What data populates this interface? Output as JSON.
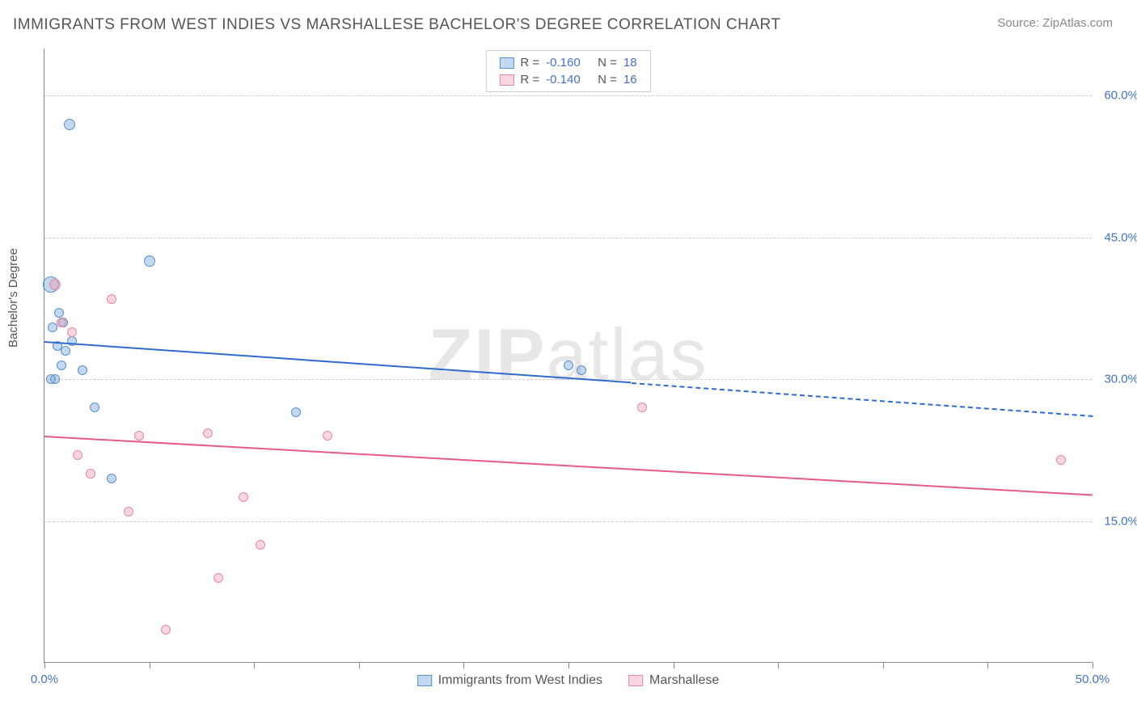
{
  "header": {
    "title": "IMMIGRANTS FROM WEST INDIES VS MARSHALLESE BACHELOR'S DEGREE CORRELATION CHART",
    "source_prefix": "Source: ",
    "source_name": "ZipAtlas.com"
  },
  "ylabel": "Bachelor's Degree",
  "watermark": {
    "part1": "ZIP",
    "part2": "atlas"
  },
  "chart": {
    "type": "scatter-with-trend",
    "x_range": [
      0,
      50
    ],
    "y_range": [
      0,
      65
    ],
    "y_ticks": [
      15.0,
      30.0,
      45.0,
      60.0
    ],
    "y_tick_labels": [
      "15.0%",
      "30.0%",
      "45.0%",
      "60.0%"
    ],
    "x_tick_positions": [
      0,
      5,
      10,
      15,
      20,
      25,
      30,
      35,
      40,
      45,
      50
    ],
    "x_tick_labels": {
      "0": "0.0%",
      "50": "50.0%"
    },
    "grid_color": "#cccccc",
    "axis_color": "#888888",
    "background_color": "#ffffff",
    "label_color": "#4472c4"
  },
  "series": {
    "s1": {
      "name": "Immigrants from West Indies",
      "fill": "rgba(120,170,225,0.45)",
      "stroke": "#5b8fc7",
      "line_color": "#2e6bd0",
      "R": "-0.160",
      "N": "18",
      "points": [
        {
          "x": 0.3,
          "y": 40,
          "r": 10
        },
        {
          "x": 1.2,
          "y": 57,
          "r": 7
        },
        {
          "x": 0.7,
          "y": 37,
          "r": 6
        },
        {
          "x": 0.4,
          "y": 35.5,
          "r": 6
        },
        {
          "x": 1.0,
          "y": 33,
          "r": 6
        },
        {
          "x": 0.8,
          "y": 31.5,
          "r": 6
        },
        {
          "x": 1.8,
          "y": 31,
          "r": 6
        },
        {
          "x": 0.5,
          "y": 30,
          "r": 6
        },
        {
          "x": 0.3,
          "y": 30,
          "r": 6
        },
        {
          "x": 2.4,
          "y": 27,
          "r": 6
        },
        {
          "x": 3.2,
          "y": 19.5,
          "r": 6
        },
        {
          "x": 5.0,
          "y": 42.5,
          "r": 7
        },
        {
          "x": 12.0,
          "y": 26.5,
          "r": 6
        },
        {
          "x": 25.0,
          "y": 31.5,
          "r": 6
        },
        {
          "x": 25.6,
          "y": 31,
          "r": 6
        },
        {
          "x": 1.3,
          "y": 34,
          "r": 6
        },
        {
          "x": 0.9,
          "y": 36,
          "r": 6
        },
        {
          "x": 0.6,
          "y": 33.5,
          "r": 6
        }
      ],
      "trend": {
        "x1": 0,
        "y1": 34,
        "x2_solid": 28,
        "y2_solid": 29.7,
        "x2": 50,
        "y2": 26.2
      }
    },
    "s2": {
      "name": "Marshallese",
      "fill": "rgba(240,150,175,0.40)",
      "stroke": "#e08aa5",
      "line_color": "#e75a8a",
      "R": "-0.140",
      "N": "16",
      "points": [
        {
          "x": 0.5,
          "y": 40,
          "r": 7
        },
        {
          "x": 3.2,
          "y": 38.5,
          "r": 6
        },
        {
          "x": 0.8,
          "y": 36,
          "r": 6
        },
        {
          "x": 1.3,
          "y": 35,
          "r": 6
        },
        {
          "x": 1.6,
          "y": 22,
          "r": 6
        },
        {
          "x": 2.2,
          "y": 20,
          "r": 6
        },
        {
          "x": 4.5,
          "y": 24,
          "r": 6
        },
        {
          "x": 4.0,
          "y": 16,
          "r": 6
        },
        {
          "x": 7.8,
          "y": 24.3,
          "r": 6
        },
        {
          "x": 9.5,
          "y": 17.5,
          "r": 6
        },
        {
          "x": 8.3,
          "y": 9,
          "r": 6
        },
        {
          "x": 10.3,
          "y": 12.5,
          "r": 6
        },
        {
          "x": 5.8,
          "y": 3.5,
          "r": 6
        },
        {
          "x": 13.5,
          "y": 24,
          "r": 6
        },
        {
          "x": 28.5,
          "y": 27,
          "r": 6
        },
        {
          "x": 48.5,
          "y": 21.5,
          "r": 6
        }
      ],
      "trend": {
        "x1": 0,
        "y1": 24,
        "x2_solid": 50,
        "y2_solid": 17.8,
        "x2": 50,
        "y2": 17.8
      }
    }
  },
  "legend_top": {
    "r_label": "R =",
    "n_label": "N ="
  }
}
